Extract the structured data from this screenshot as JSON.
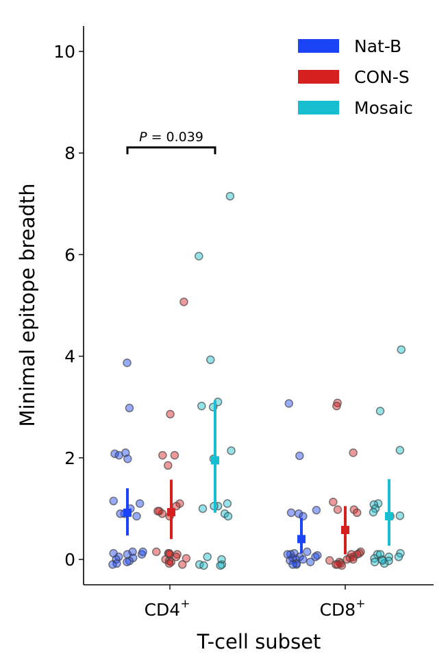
{
  "chart_data": {
    "type": "scatter",
    "xlabel": "T-cell subset",
    "ylabel": "Minimal epitope breadth",
    "ylim": [
      -0.5,
      10.5
    ],
    "yticks": [
      0,
      2,
      4,
      6,
      8,
      10
    ],
    "categories": [
      "CD4",
      "CD8"
    ],
    "category_superscript": "+",
    "grid": false,
    "legend_position": "top-right",
    "annotation": {
      "label": "P",
      "text": " = 0.039",
      "between": [
        "CD4 Nat-B",
        "CD4 Mosaic"
      ]
    },
    "series": [
      {
        "name": "Nat-B",
        "color": "#1a44f5",
        "groups": [
          {
            "mean": 0.92,
            "ci": [
              0.47,
              1.4
            ],
            "values": [
              3.87,
              2.98,
              2.08,
              2.05,
              2.1,
              1.98,
              1.15,
              1.1,
              1.0,
              0.9,
              0.9,
              0.85,
              0.15,
              0.12,
              0.1,
              0.05,
              0.03,
              0.0,
              -0.03,
              -0.05,
              -0.08,
              -0.1,
              0.1,
              0.15
            ]
          },
          {
            "mean": 0.4,
            "ci": [
              0.12,
              0.82
            ],
            "values": [
              3.07,
              2.04,
              0.97,
              0.92,
              0.9,
              0.85,
              0.15,
              0.12,
              0.1,
              0.08,
              0.05,
              0.03,
              0.0,
              0.0,
              -0.02,
              -0.05,
              -0.08,
              -0.1,
              0.1,
              0.05,
              -0.1
            ]
          }
        ]
      },
      {
        "name": "CON-S",
        "color": "#d62020",
        "groups": [
          {
            "mean": 0.93,
            "ci": [
              0.4,
              1.57
            ],
            "values": [
              5.07,
              2.86,
              2.05,
              2.05,
              1.85,
              1.1,
              1.05,
              0.95,
              0.9,
              0.85,
              0.95,
              0.15,
              0.12,
              0.1,
              0.05,
              0.02,
              0.0,
              -0.03,
              -0.05,
              -0.08,
              -0.1,
              0.1,
              0.12
            ]
          },
          {
            "mean": 0.58,
            "ci": [
              0.1,
              1.05
            ],
            "values": [
              3.08,
              3.02,
              2.1,
              1.13,
              0.98,
              0.98,
              0.92,
              0.15,
              0.12,
              0.1,
              0.05,
              0.03,
              0.0,
              -0.02,
              -0.05,
              -0.08,
              -0.1,
              -0.12,
              0.1,
              0.0,
              -0.1
            ]
          }
        ]
      },
      {
        "name": "Mosaic",
        "color": "#17becf",
        "groups": [
          {
            "mean": 1.95,
            "ci": [
              0.92,
              3.13
            ],
            "values": [
              7.15,
              5.97,
              3.93,
              3.1,
              3.0,
              3.02,
              2.14,
              1.98,
              1.1,
              1.05,
              1.05,
              1.0,
              0.9,
              0.85,
              0.05,
              -0.1,
              -0.12,
              -0.1,
              0.0,
              -0.12
            ]
          },
          {
            "mean": 0.85,
            "ci": [
              0.27,
              1.58
            ],
            "values": [
              4.13,
              2.92,
              2.15,
              1.1,
              1.08,
              1.0,
              0.93,
              0.85,
              0.86,
              0.12,
              0.1,
              0.05,
              0.02,
              0.0,
              -0.03,
              -0.05,
              -0.08,
              0.1,
              -0.02,
              0.05
            ]
          }
        ]
      }
    ]
  }
}
